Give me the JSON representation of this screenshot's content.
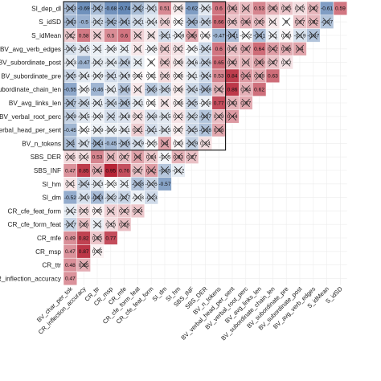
{
  "chart_data": {
    "type": "heatmap",
    "title": "",
    "xlabel": "",
    "ylabel": "",
    "layout": "lower-triangular correlation matrix; crossed cells mark non-significant correlations",
    "color_scale": {
      "negative": "#2f5f9e",
      "zero": "#ffffff",
      "positive": "#b2182b",
      "range": [
        -1,
        1
      ]
    },
    "highlight_box": {
      "rows": [
        "SI_dep_dl",
        "BV_n_tokens"
      ],
      "cols": [
        "BV_char_per_tok",
        "BV_n_tokens"
      ]
    },
    "row_labels": [
      "SI_dep_dl",
      "S_idSD",
      "S_idMean",
      "BV_avg_verb_edges",
      "BV_subordinate_post",
      "BV_subordinate_pre",
      "BV_subordinate_chain_len",
      "BV_avg_links_len",
      "BV_verbal_root_perc",
      "BV_verbal_head_per_sent",
      "BV_n_tokens",
      "SBS_DER",
      "SBS_INF",
      "SI_hm",
      "SI_dm",
      "CR_cfe_feat_form",
      "CR_cfe_form_feat",
      "CR_mfe",
      "CR_msp",
      "CR_ttr",
      "CR_inflection_accuracy"
    ],
    "col_labels": [
      "BV_char_per_tok",
      "CR_inflection_accuracy",
      "CR_ttr",
      "CR_msp",
      "CR_mfe",
      "CR_cfe_form_feat",
      "CR_cfe_feat_form",
      "SI_dm",
      "SI_hm",
      "SBS_INF",
      "SBS_DER",
      "BV_n_tokens",
      "BV_verbal_head_per_sent",
      "BV_verbal_root_perc",
      "BV_avg_links_len",
      "BV_subordinate_chain_len",
      "BV_subordinate_pre",
      "BV_subordinate_post",
      "BV_avg_verb_edges",
      "S_idMean",
      "S_idSD"
    ],
    "cells": [
      [
        {
          "v": -0.43,
          "x": true
        },
        {
          "v": -0.69
        },
        {
          "v": -0.42,
          "x": true
        },
        {
          "v": -0.68
        },
        {
          "v": -0.74
        },
        {
          "v": -0.42,
          "x": true
        },
        {
          "v": -0.21,
          "x": true
        },
        {
          "v": 0.51
        },
        {
          "v": 0.08,
          "x": true
        },
        {
          "v": -0.62
        },
        {
          "v": -0.15,
          "x": true
        },
        {
          "v": 0.6
        },
        {
          "v": 0.34,
          "x": true
        },
        {
          "v": 0.3,
          "x": true
        },
        {
          "v": 0.53
        },
        {
          "v": 0.33,
          "x": true
        },
        {
          "v": 0.25,
          "x": true
        },
        {
          "v": 0.15,
          "x": true
        },
        {
          "v": 0.32,
          "x": true
        },
        {
          "v": -0.61
        },
        {
          "v": 0.59
        }
      ],
      [
        {
          "v": -0.43,
          "x": true
        },
        {
          "v": -0.5
        },
        {
          "v": -0.22,
          "x": true
        },
        {
          "v": -0.42,
          "x": true
        },
        {
          "v": -0.41,
          "x": true
        },
        {
          "v": -0.21,
          "x": true
        },
        {
          "v": -0.14,
          "x": true
        },
        {
          "v": 0.18,
          "x": true
        },
        {
          "v": 0.02,
          "x": true
        },
        {
          "v": -0.43,
          "x": true
        },
        {
          "v": -0.26,
          "x": true
        },
        {
          "v": 0.66
        },
        {
          "v": 0.25,
          "x": true
        },
        {
          "v": 0.34,
          "x": true
        },
        {
          "v": 0.29,
          "x": true
        },
        {
          "v": 0.1,
          "x": true
        },
        {
          "v": 0.0,
          "x": true
        },
        {
          "v": 0.27,
          "x": true
        },
        {
          "v": 0.32,
          "x": true
        },
        {
          "v": -0.37,
          "x": true
        }
      ],
      [
        {
          "v": 0.22,
          "x": true
        },
        {
          "v": 0.58
        },
        {
          "v": 0.2,
          "x": true
        },
        {
          "v": 0.5
        },
        {
          "v": 0.6
        },
        {
          "v": 0.2,
          "x": true
        },
        {
          "v": 0.1,
          "x": true
        },
        {
          "v": -0.21,
          "x": true
        },
        {
          "v": -0.08,
          "x": true
        },
        {
          "v": 0.38,
          "x": true
        },
        {
          "v": 0.03,
          "x": true
        },
        {
          "v": -0.47
        },
        {
          "v": -0.41,
          "x": true
        },
        {
          "v": -0.02,
          "x": true
        },
        {
          "v": -0.41,
          "x": true
        },
        {
          "v": -0.1,
          "x": true
        },
        {
          "v": 0.03,
          "x": true
        },
        {
          "v": -0.19,
          "x": true
        },
        {
          "v": -0.37,
          "x": true
        }
      ],
      [
        {
          "v": -0.19,
          "x": true
        },
        {
          "v": -0.15,
          "x": true
        },
        {
          "v": -0.1,
          "x": true
        },
        {
          "v": -0.08,
          "x": true
        },
        {
          "v": -0.1,
          "x": true
        },
        {
          "v": 0.1,
          "x": true
        },
        {
          "v": -0.06,
          "x": true
        },
        {
          "v": 0.21,
          "x": true
        },
        {
          "v": 0.12,
          "x": true
        },
        {
          "v": -0.05,
          "x": true
        },
        {
          "v": -0.24,
          "x": true
        },
        {
          "v": 0.6
        },
        {
          "v": 0.28,
          "x": true
        },
        {
          "v": 0.37,
          "x": true
        },
        {
          "v": 0.64
        },
        {
          "v": 0.42,
          "x": true
        },
        {
          "v": 0.36,
          "x": true
        },
        {
          "v": 0.4,
          "x": true
        }
      ],
      [
        {
          "v": -0.13,
          "x": true
        },
        {
          "v": -0.47
        },
        {
          "v": -0.12,
          "x": true
        },
        {
          "v": -0.14,
          "x": true
        },
        {
          "v": -0.28,
          "x": true
        },
        {
          "v": -0.1,
          "x": true
        },
        {
          "v": 0.0,
          "x": true
        },
        {
          "v": 0.22,
          "x": true
        },
        {
          "v": 0.09,
          "x": true
        },
        {
          "v": -0.16,
          "x": true
        },
        {
          "v": -0.26,
          "x": true
        },
        {
          "v": 0.65
        },
        {
          "v": 0.32,
          "x": true
        },
        {
          "v": 0.3,
          "x": true
        },
        {
          "v": 0.39,
          "x": true
        },
        {
          "v": 0.27,
          "x": true
        },
        {
          "v": 0.12,
          "x": true
        }
      ],
      [
        {
          "v": -0.25,
          "x": true
        },
        {
          "v": -0.14,
          "x": true
        },
        {
          "v": -0.09,
          "x": true
        },
        {
          "v": -0.21,
          "x": true
        },
        {
          "v": -0.19,
          "x": true
        },
        {
          "v": 0.04,
          "x": true
        },
        {
          "v": 0.01,
          "x": true
        },
        {
          "v": 0.16,
          "x": true
        },
        {
          "v": 0.06,
          "x": true
        },
        {
          "v": -0.11,
          "x": true
        },
        {
          "v": -0.24,
          "x": true
        },
        {
          "v": 0.53
        },
        {
          "v": 0.84
        },
        {
          "v": 0.44,
          "x": true
        },
        {
          "v": 0.38,
          "x": true
        },
        {
          "v": 0.63
        }
      ],
      [
        {
          "v": -0.55
        },
        {
          "v": -0.05,
          "x": true
        },
        {
          "v": -0.46
        },
        {
          "v": -0.11,
          "x": true
        },
        {
          "v": -0.36,
          "x": true
        },
        {
          "v": 0.1,
          "x": true
        },
        {
          "v": -0.33,
          "x": true
        },
        {
          "v": -0.25,
          "x": true
        },
        {
          "v": 0.08,
          "x": true
        },
        {
          "v": -0.24,
          "x": true
        },
        {
          "v": -0.38,
          "x": true
        },
        {
          "v": 0.32,
          "x": true
        },
        {
          "v": 0.86
        },
        {
          "v": 0.34,
          "x": true
        },
        {
          "v": 0.62
        }
      ],
      [
        {
          "v": -0.37,
          "x": true
        },
        {
          "v": -0.24,
          "x": true
        },
        {
          "v": -0.11,
          "x": true
        },
        {
          "v": -0.24,
          "x": true
        },
        {
          "v": -0.35,
          "x": true
        },
        {
          "v": -0.11,
          "x": true
        },
        {
          "v": 0.01,
          "x": true
        },
        {
          "v": 0.1,
          "x": true
        },
        {
          "v": 0.06,
          "x": true
        },
        {
          "v": -0.25,
          "x": true
        },
        {
          "v": -0.08,
          "x": true
        },
        {
          "v": 0.77
        },
        {
          "v": 0.33,
          "x": true
        },
        {
          "v": 0.37,
          "x": true
        }
      ],
      [
        {
          "v": -0.29,
          "x": true
        },
        {
          "v": -0.15,
          "x": true
        },
        {
          "v": -0.08,
          "x": true
        },
        {
          "v": -0.2,
          "x": true
        },
        {
          "v": -0.18,
          "x": true
        },
        {
          "v": 0.12,
          "x": true
        },
        {
          "v": -0.18,
          "x": true
        },
        {
          "v": -0.15,
          "x": true
        },
        {
          "v": 0.12,
          "x": true
        },
        {
          "v": -0.22,
          "x": true
        },
        {
          "v": -0.37,
          "x": true
        },
        {
          "v": 0.29,
          "x": true
        },
        {
          "v": 0.44,
          "x": true
        }
      ],
      [
        {
          "v": -0.45
        },
        {
          "v": -0.02,
          "x": true
        },
        {
          "v": -0.09,
          "x": true
        },
        {
          "v": -0.09,
          "x": true
        },
        {
          "v": -0.11,
          "x": true
        },
        {
          "v": 0.21,
          "x": true
        },
        {
          "v": -0.21,
          "x": true
        },
        {
          "v": -0.15,
          "x": true
        },
        {
          "v": 0.07,
          "x": true
        },
        {
          "v": -0.25,
          "x": true
        },
        {
          "v": -0.38,
          "x": true
        },
        {
          "v": 0.38,
          "x": true
        }
      ],
      [
        {
          "v": -0.4,
          "x": true
        },
        {
          "v": -0.17,
          "x": true
        },
        {
          "v": -0.44,
          "x": true
        },
        {
          "v": -0.45
        },
        {
          "v": -0.35,
          "x": true
        },
        {
          "v": -0.19,
          "x": true
        },
        {
          "v": -0.05,
          "x": true
        },
        {
          "v": 0.4,
          "x": true
        },
        {
          "v": 0.03,
          "x": true
        },
        {
          "v": -0.29,
          "x": true
        },
        {
          "v": 0.14,
          "x": true
        }
      ],
      [
        {
          "v": 0.16,
          "x": true
        },
        {
          "v": 0.14,
          "x": true
        },
        {
          "v": 0.53
        },
        {
          "v": 0.3,
          "x": true
        },
        {
          "v": 0.27,
          "x": true
        },
        {
          "v": 0.4,
          "x": true
        },
        {
          "v": 0.24,
          "x": true
        },
        {
          "v": -0.05,
          "x": true
        },
        {
          "v": 0.33,
          "x": true
        },
        {
          "v": 0.27,
          "x": true
        }
      ],
      [
        {
          "v": 0.47
        },
        {
          "v": 0.85
        },
        {
          "v": 0.34,
          "x": true
        },
        {
          "v": 0.95
        },
        {
          "v": 0.76
        },
        {
          "v": 0.27,
          "x": true
        },
        {
          "v": 0.42,
          "x": true
        },
        {
          "v": -0.35,
          "x": true
        },
        {
          "v": -0.12,
          "x": true
        }
      ],
      [
        {
          "v": 0.11,
          "x": true
        },
        {
          "v": -0.24,
          "x": true
        },
        {
          "v": -0.13,
          "x": true
        },
        {
          "v": -0.03,
          "x": true
        },
        {
          "v": -0.1,
          "x": true
        },
        {
          "v": -0.38,
          "x": true
        },
        {
          "v": -0.26,
          "x": true
        },
        {
          "v": -0.57
        }
      ],
      [
        {
          "v": -0.52
        },
        {
          "v": -0.19,
          "x": true
        },
        {
          "v": -0.43,
          "x": true
        },
        {
          "v": -0.22,
          "x": true
        },
        {
          "v": -0.27,
          "x": true
        },
        {
          "v": -0.08,
          "x": true
        },
        {
          "v": -0.23,
          "x": true
        }
      ],
      [
        {
          "v": -0.12,
          "x": true
        },
        {
          "v": 0.15,
          "x": true
        },
        {
          "v": 0.05,
          "x": true
        },
        {
          "v": 0.2,
          "x": true
        },
        {
          "v": 0.23,
          "x": true
        },
        {
          "v": 0.24,
          "x": true
        }
      ],
      [
        {
          "v": -0.27,
          "x": true
        },
        {
          "v": 0.26,
          "x": true
        },
        {
          "v": -0.1,
          "x": true
        },
        {
          "v": 0.15,
          "x": true
        },
        {
          "v": 0.28,
          "x": true
        }
      ],
      [
        {
          "v": 0.49
        },
        {
          "v": 0.82
        },
        {
          "v": 0.25,
          "x": true
        },
        {
          "v": 0.77
        }
      ],
      [
        {
          "v": 0.47
        },
        {
          "v": 0.87
        },
        {
          "v": 0.05,
          "x": true
        }
      ],
      [
        {
          "v": 0.48
        },
        {
          "v": 0.35,
          "x": true
        }
      ],
      [
        {
          "v": 0.47
        }
      ]
    ]
  }
}
